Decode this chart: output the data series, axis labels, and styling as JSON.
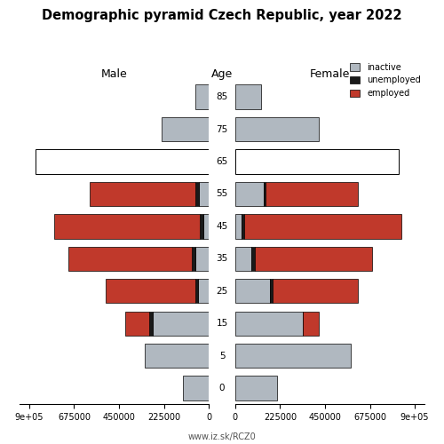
{
  "title": "Demographic pyramid Czech Republic, year 2022",
  "subtitle": "www.iz.sk/RCZ0",
  "age_groups": [
    "0",
    "5",
    "15",
    "25",
    "35",
    "45",
    "55",
    "65",
    "75",
    "85"
  ],
  "male": {
    "inactive": [
      130000,
      320000,
      280000,
      55000,
      65000,
      25000,
      50000,
      870000,
      235000,
      65000
    ],
    "unemployed": [
      0,
      0,
      18000,
      12000,
      18000,
      22000,
      18000,
      0,
      0,
      0
    ],
    "employed": [
      0,
      0,
      120000,
      450000,
      620000,
      730000,
      530000,
      0,
      0,
      0
    ]
  },
  "female": {
    "inactive": [
      210000,
      580000,
      340000,
      175000,
      80000,
      30000,
      145000,
      820000,
      420000,
      130000
    ],
    "unemployed": [
      0,
      0,
      0,
      12000,
      18000,
      15000,
      8000,
      0,
      0,
      0
    ],
    "employed": [
      0,
      0,
      80000,
      430000,
      590000,
      790000,
      460000,
      0,
      0,
      0
    ]
  },
  "male_65_total": 870000,
  "female_65_total": 820000,
  "colors": {
    "inactive": "#b0b8c0",
    "unemployed": "#1a1a1a",
    "employed": "#c0392b"
  },
  "xlim": 950000,
  "xticks": [
    0,
    225000,
    450000,
    675000,
    900000
  ],
  "male_tick_labels": [
    "0",
    "225000",
    "450000",
    "675000",
    "9e+05"
  ],
  "female_tick_labels": [
    "0",
    "225000",
    "450000",
    "675000",
    "9e+05"
  ],
  "bar_height": 0.75,
  "figsize": [
    5.0,
    5.0
  ],
  "dpi": 100
}
